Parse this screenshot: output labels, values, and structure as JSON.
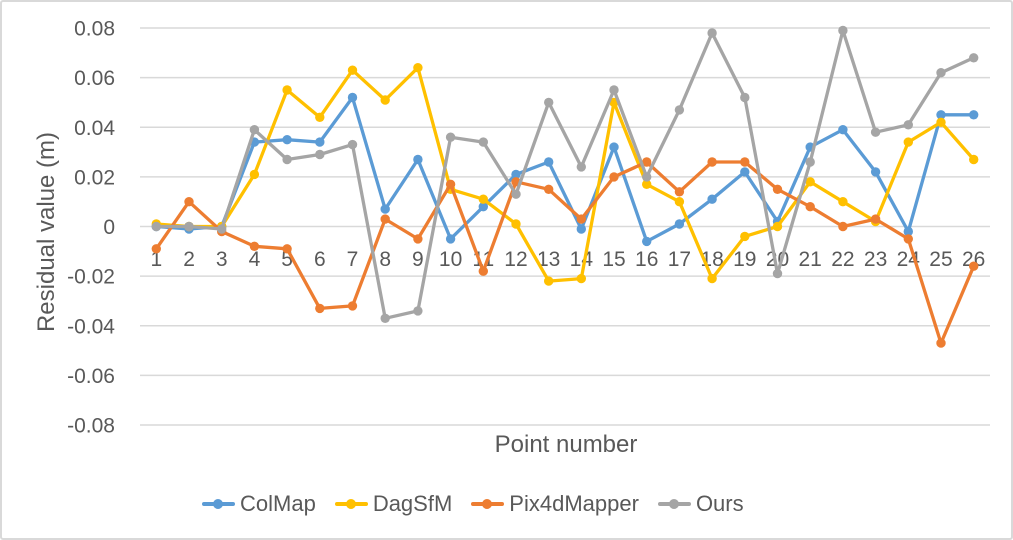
{
  "chart_data": {
    "type": "line",
    "xlabel": "Point number",
    "ylabel": "Residual value (m)",
    "ylim": [
      -0.08,
      0.08
    ],
    "y_tick_step": 0.02,
    "y_tick_labels": [
      "0.08",
      "0.06",
      "0.04",
      "0.02",
      "0",
      "-0.02",
      "-0.04",
      "-0.06",
      "-0.08"
    ],
    "categories": [
      "1",
      "2",
      "3",
      "4",
      "5",
      "6",
      "7",
      "8",
      "9",
      "10",
      "11",
      "12",
      "13",
      "14",
      "15",
      "16",
      "17",
      "18",
      "19",
      "20",
      "21",
      "22",
      "23",
      "24",
      "25",
      "26"
    ],
    "grid": true,
    "legend_position": "bottom",
    "marker": "circle",
    "gridline_color": "#d9d9d9",
    "text_color": "#595959",
    "series": [
      {
        "name": "ColMap",
        "color": "#5B9BD5",
        "values": [
          0.0,
          -0.001,
          0.0,
          0.034,
          0.035,
          0.034,
          0.052,
          0.007,
          0.027,
          -0.005,
          0.008,
          0.021,
          0.026,
          -0.001,
          0.032,
          -0.006,
          0.001,
          0.011,
          0.022,
          0.002,
          0.032,
          0.039,
          0.022,
          -0.002,
          0.045,
          0.045
        ]
      },
      {
        "name": "DagSfM",
        "color": "#FFC000",
        "values": [
          0.001,
          0.0,
          0.0,
          0.021,
          0.055,
          0.044,
          0.063,
          0.051,
          0.064,
          0.015,
          0.011,
          0.001,
          -0.022,
          -0.021,
          0.05,
          0.017,
          0.01,
          -0.021,
          -0.004,
          0.0,
          0.018,
          0.01,
          0.002,
          0.034,
          0.042,
          0.027
        ]
      },
      {
        "name": "Pix4dMapper",
        "color": "#ED7D31",
        "values": [
          -0.009,
          0.01,
          -0.002,
          -0.008,
          -0.009,
          -0.033,
          -0.032,
          0.003,
          -0.005,
          0.017,
          -0.018,
          0.018,
          0.015,
          0.003,
          0.02,
          0.026,
          0.014,
          0.026,
          0.026,
          0.015,
          0.008,
          0.0,
          0.003,
          -0.005,
          -0.047,
          -0.016
        ]
      },
      {
        "name": "Ours",
        "color": "#A5A5A5",
        "values": [
          0.0,
          0.0,
          -0.001,
          0.039,
          0.027,
          0.029,
          0.033,
          -0.037,
          -0.034,
          0.036,
          0.034,
          0.013,
          0.05,
          0.024,
          0.055,
          0.02,
          0.047,
          0.078,
          0.052,
          -0.019,
          0.026,
          0.079,
          0.038,
          0.041,
          0.062,
          0.068
        ]
      }
    ]
  }
}
